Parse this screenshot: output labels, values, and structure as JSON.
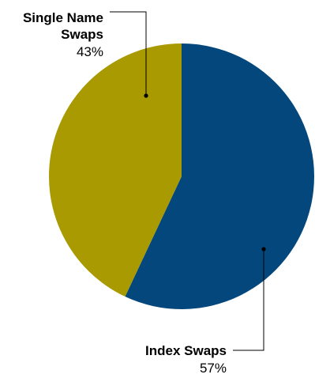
{
  "chart_data": {
    "type": "pie",
    "title": "",
    "slices": [
      {
        "name": "Index Swaps",
        "value": 57,
        "label": "57%",
        "color": "#03477c"
      },
      {
        "name": "Single Name Swaps",
        "value": 43,
        "label": "43%",
        "color": "#a89a00"
      }
    ],
    "legend": "none"
  }
}
